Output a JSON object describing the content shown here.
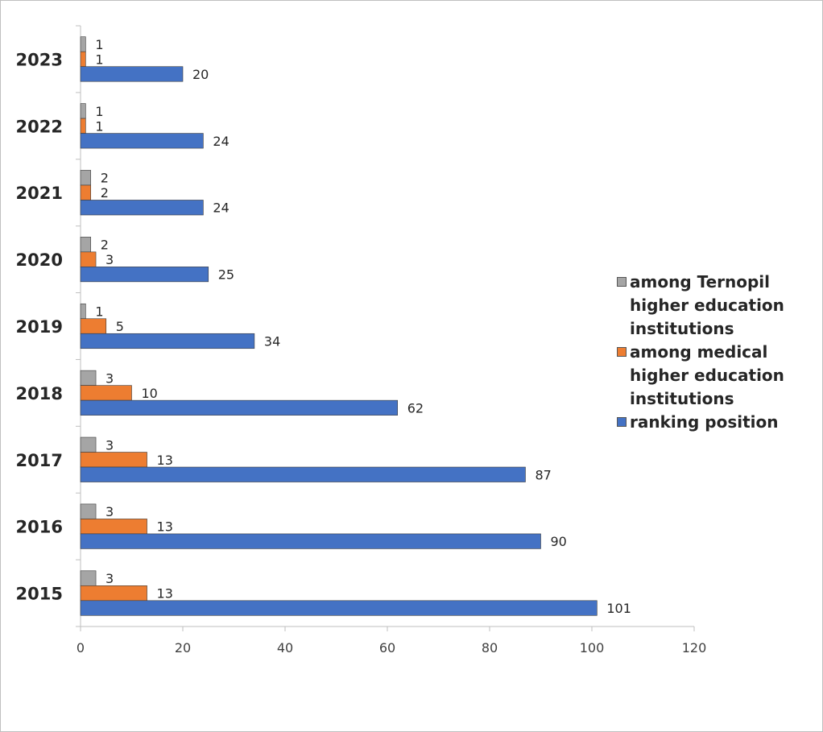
{
  "chart_data": {
    "type": "bar",
    "orientation": "horizontal",
    "categories": [
      "2015",
      "2016",
      "2017",
      "2018",
      "2019",
      "2020",
      "2021",
      "2022",
      "2023"
    ],
    "series": [
      {
        "name": "ranking position",
        "color": "#4472C4",
        "values": [
          101,
          90,
          87,
          62,
          34,
          25,
          24,
          24,
          20
        ]
      },
      {
        "name": "among medical higher education institutions",
        "color": "#ED7D31",
        "values": [
          13,
          13,
          13,
          10,
          5,
          3,
          2,
          1,
          1
        ]
      },
      {
        "name": "among Ternopil higher education institutions",
        "color": "#A5A5A5",
        "values": [
          3,
          3,
          3,
          3,
          1,
          2,
          2,
          1,
          1
        ]
      }
    ],
    "xlim": [
      0,
      120
    ],
    "xticks": [
      "0",
      "20",
      "40",
      "60",
      "80",
      "100",
      "120"
    ],
    "data_labels": true,
    "grid": false,
    "legend_position": "right",
    "legend_order": [
      "among Ternopil higher education institutions",
      "among medical higher education institutions",
      "ranking position"
    ]
  }
}
